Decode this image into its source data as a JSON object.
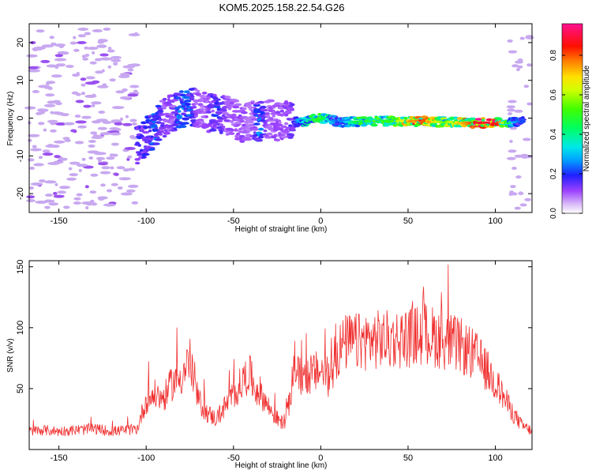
{
  "title": "KOM5.2025.158.22.54.G26",
  "colors": {
    "snr_line": "#f03030",
    "scatter_faint": "#c8a8f0",
    "axis": "#000000"
  },
  "chart_data": [
    {
      "type": "heatmap",
      "xlabel": "Height of straight line (km)",
      "ylabel": "Frequency (Hz)",
      "xlim": [
        -167,
        121
      ],
      "ylim": [
        -25,
        25
      ],
      "x_ticks": [
        -150,
        -100,
        -50,
        0,
        50,
        100
      ],
      "x_tick_labels": [
        "-150",
        "-100",
        "-50",
        "0",
        "50",
        "100"
      ],
      "y_ticks": [
        -20,
        -10,
        0,
        10,
        20
      ],
      "y_tick_labels": [
        "-20",
        "-10",
        "0",
        "10",
        "20"
      ],
      "grid": false,
      "colorbar": {
        "label": "Normalized spectral amplitude",
        "ticks": [
          0.0,
          0.2,
          0.4,
          0.6,
          0.8
        ],
        "tick_labels": [
          "0.0",
          "0.2",
          "0.4",
          "0.6",
          "0.8"
        ],
        "range": [
          0,
          0.96
        ]
      },
      "ridge": {
        "x": [
          -105,
          -100,
          -95,
          -90,
          -85,
          -80,
          -75,
          -70,
          -65,
          -60,
          -55,
          -50,
          -45,
          -40,
          -35,
          -30,
          -25,
          -20,
          -15,
          -10,
          -5,
          0,
          5,
          10,
          20,
          30,
          40,
          50,
          60,
          70,
          80,
          90,
          100,
          110,
          117
        ],
        "y": [
          -7,
          -5,
          -3,
          0,
          1.5,
          2.5,
          3,
          2.5,
          1.5,
          1,
          1,
          0,
          -1.5,
          -0.5,
          -1,
          0,
          -1,
          -0.5,
          -1,
          -1,
          -0.5,
          0,
          -0.5,
          -1,
          -1,
          -0.8,
          -0.8,
          -0.8,
          -0.9,
          -1,
          -1.2,
          -1.3,
          -1.2,
          -1,
          -1
        ],
        "amplitude": [
          0.18,
          0.18,
          0.25,
          0.12,
          0.1,
          0.28,
          0.22,
          0.08,
          0.1,
          0.2,
          0.12,
          0.08,
          0.1,
          0.05,
          0.25,
          0.08,
          0.1,
          0.1,
          0.2,
          0.35,
          0.45,
          0.5,
          0.35,
          0.2,
          0.45,
          0.5,
          0.5,
          0.75,
          0.8,
          0.55,
          0.7,
          0.88,
          0.9,
          0.3,
          0.2
        ]
      }
    },
    {
      "type": "line",
      "xlabel": "Height of straight line (km)",
      "ylabel": "SNR (v/v)",
      "xlim": [
        -167,
        121
      ],
      "ylim": [
        0,
        155
      ],
      "x_ticks": [
        -150,
        -100,
        -50,
        0,
        50,
        100
      ],
      "x_tick_labels": [
        "-150",
        "-100",
        "-50",
        "0",
        "50",
        "100"
      ],
      "y_ticks": [
        50,
        100,
        150
      ],
      "y_tick_labels": [
        "50",
        "100",
        "150"
      ],
      "grid": false,
      "series": [
        {
          "x": [
            -167,
            -160,
            -150,
            -140,
            -130,
            -120,
            -110,
            -105,
            -102,
            -100,
            -95,
            -90,
            -85,
            -80,
            -77,
            -75,
            -73,
            -70,
            -65,
            -60,
            -55,
            -50,
            -45,
            -42,
            -40,
            -38,
            -35,
            -30,
            -25,
            -22,
            -20,
            -17,
            -15,
            -13,
            -10,
            -5,
            0,
            5,
            8,
            10,
            12,
            15,
            20,
            30,
            40,
            50,
            60,
            70,
            80,
            90,
            100,
            110,
            115,
            121
          ],
          "values": [
            15,
            16,
            15,
            16,
            17,
            15,
            16,
            17,
            32,
            40,
            45,
            42,
            55,
            60,
            68,
            75,
            55,
            40,
            30,
            25,
            35,
            45,
            55,
            62,
            60,
            50,
            48,
            35,
            25,
            22,
            25,
            45,
            75,
            60,
            60,
            62,
            65,
            58,
            70,
            80,
            85,
            88,
            88,
            90,
            90,
            92,
            95,
            90,
            85,
            75,
            55,
            30,
            20,
            15
          ]
        }
      ]
    }
  ]
}
